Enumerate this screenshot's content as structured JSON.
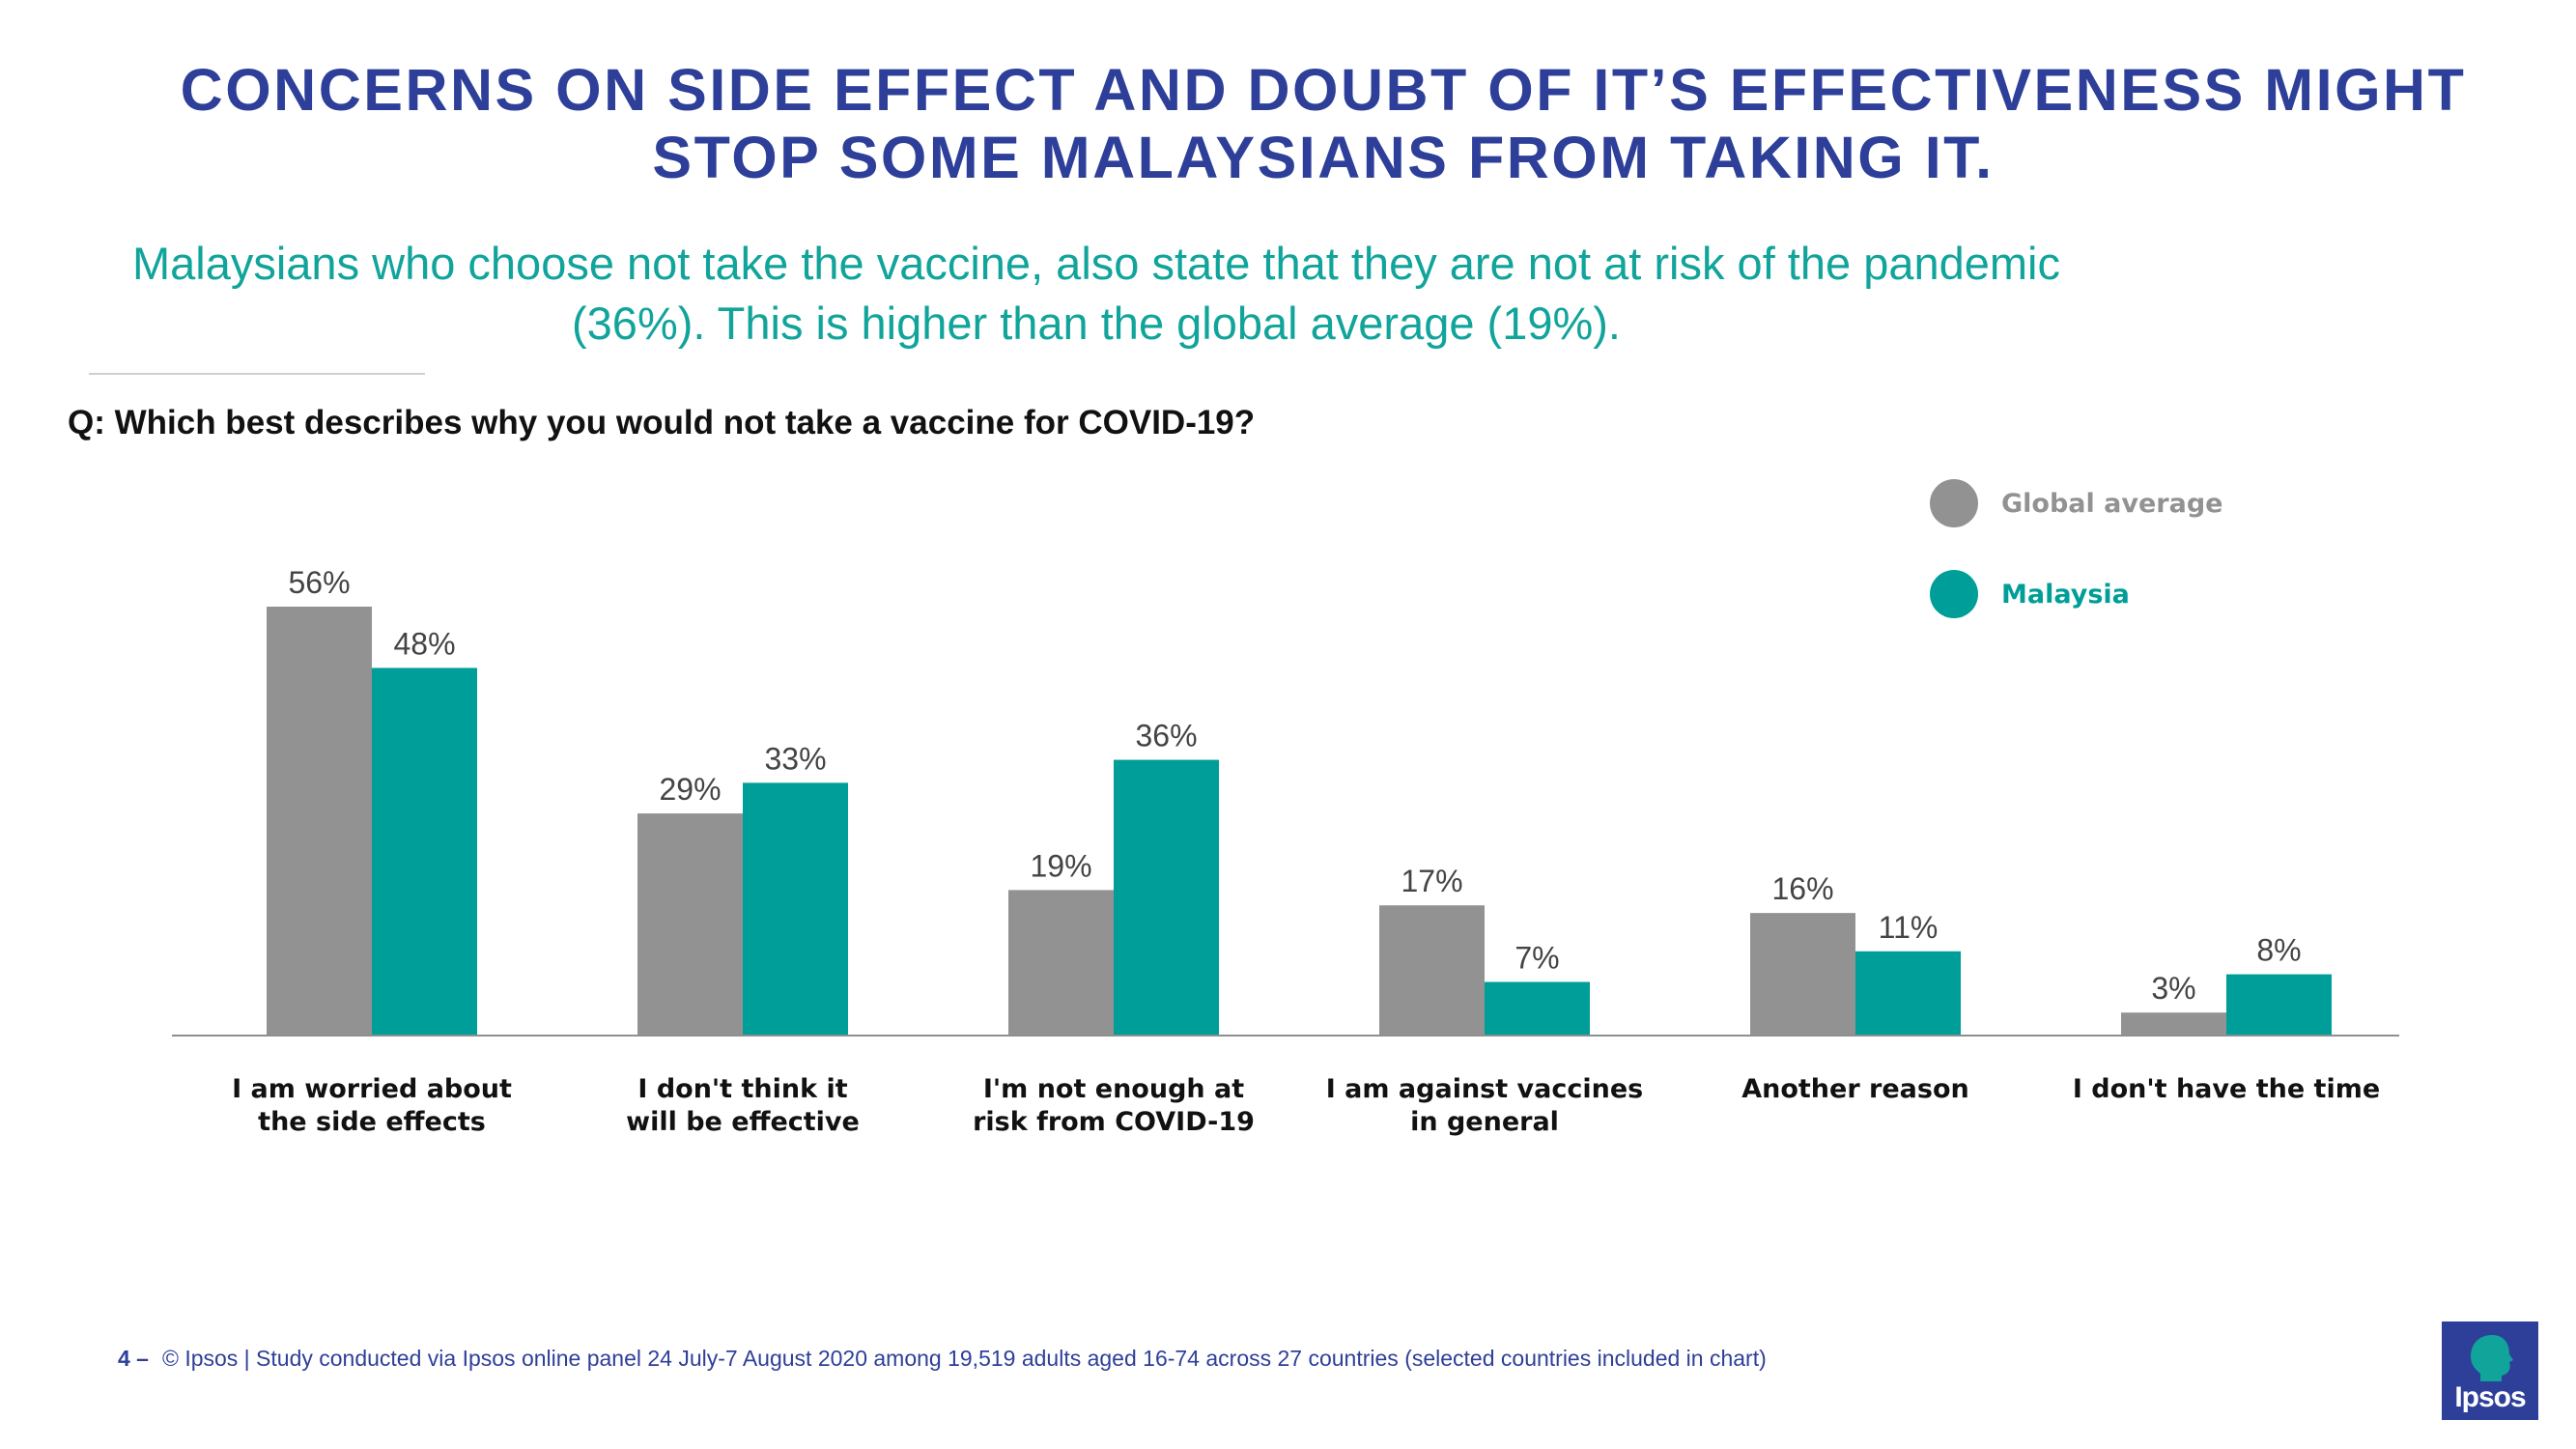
{
  "title_line1": "CONCERNS ON SIDE EFFECT AND DOUBT OF IT’S EFFECTIVENESS MIGHT",
  "title_line2": "STOP SOME MALAYSIANS FROM TAKING IT.",
  "subtitle_line1": "Malaysians who choose not take the vaccine, also state that they are not at risk of the pandemic",
  "subtitle_line2": "(36%). This is higher than the global average (19%).",
  "question": "Q: Which best describes why you would not take a vaccine for COVID-19?",
  "footer": {
    "page_number": "4 –",
    "note": "© Ipsos | Study conducted via Ipsos online panel 24 July-7 August 2020 among 19,519 adults aged 16-74 across 27 countries (selected countries included in chart)"
  },
  "logo_text": "Ipsos",
  "colors": {
    "global": "#929292",
    "malaysia": "#009e98",
    "title": "#2e3f99",
    "subtitle": "#11a49b"
  },
  "chart_data": {
    "type": "bar",
    "categories": [
      [
        "I am worried about",
        "the side effects"
      ],
      [
        "I don't think it",
        "will be effective"
      ],
      [
        "I'm not enough at",
        "risk from COVID-19"
      ],
      [
        "I am against vaccines",
        "in general"
      ],
      [
        "Another reason"
      ],
      [
        "I don't have the time"
      ]
    ],
    "series": [
      {
        "name": "Global average",
        "color": "#929292",
        "values": [
          56,
          29,
          19,
          17,
          16,
          3
        ]
      },
      {
        "name": "Malaysia",
        "color": "#009e98",
        "values": [
          48,
          33,
          36,
          7,
          11,
          8
        ]
      }
    ],
    "value_suffix": "%",
    "ylim": [
      0,
      56
    ],
    "legend_position": "top-right",
    "grid": false
  }
}
